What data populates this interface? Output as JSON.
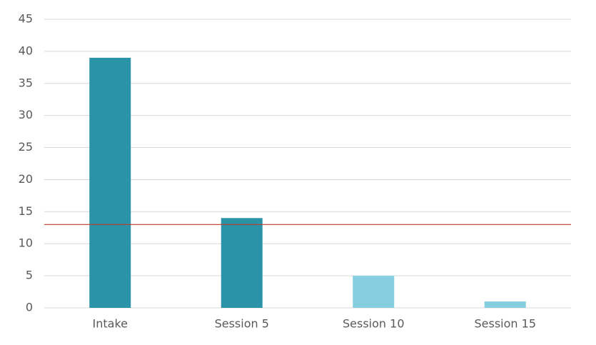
{
  "chart_data": {
    "type": "bar",
    "categories": [
      "Intake",
      "Session 5",
      "Session 10",
      "Session 15"
    ],
    "values": [
      39,
      14,
      5,
      1
    ],
    "colors": [
      "#2b93a8",
      "#2b93a8",
      "#87cfe0",
      "#87cfe0"
    ],
    "ylim": [
      0,
      45
    ],
    "yticks": [
      0,
      5,
      10,
      15,
      20,
      25,
      30,
      35,
      40,
      45
    ],
    "grid": true,
    "reference_value": 13,
    "reference_color": "#c0392b"
  }
}
